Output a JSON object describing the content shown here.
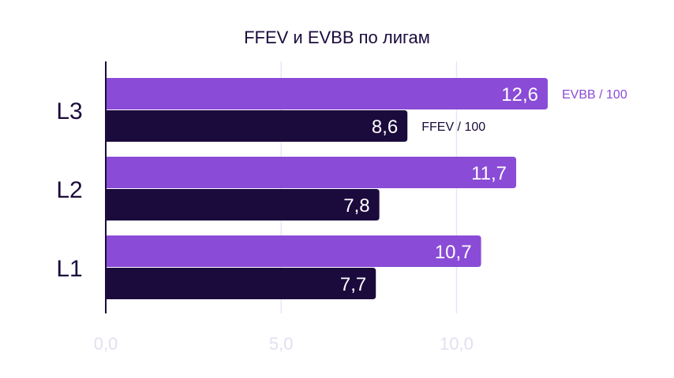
{
  "chart_data": {
    "type": "bar",
    "orientation": "horizontal",
    "title": "FFEV и EVBB по лигам",
    "categories": [
      "L3",
      "L2",
      "L1"
    ],
    "series": [
      {
        "name": "EVBB / 100",
        "values": [
          12.6,
          11.7,
          10.7
        ],
        "labels": [
          "12,6",
          "11,7",
          "10,7"
        ],
        "color": "#8a4bd6"
      },
      {
        "name": "FFEV / 100",
        "values": [
          8.6,
          7.8,
          7.7
        ],
        "labels": [
          "8,6",
          "7,8",
          "7,7"
        ],
        "color": "#1b0b3d"
      }
    ],
    "xlim": [
      0,
      12.6
    ],
    "xticks": [
      0,
      5,
      10
    ],
    "xtick_labels": [
      "0,0",
      "5,0",
      "10,0"
    ],
    "grid": true,
    "legend": "inline-right-of-top-bars"
  },
  "colors": {
    "background": "#ffffff",
    "grid": "#e8e6f6",
    "axis": "#1b0b3d",
    "text_dark": "#1b0b3d",
    "tick_text": "#e1e0f2"
  }
}
